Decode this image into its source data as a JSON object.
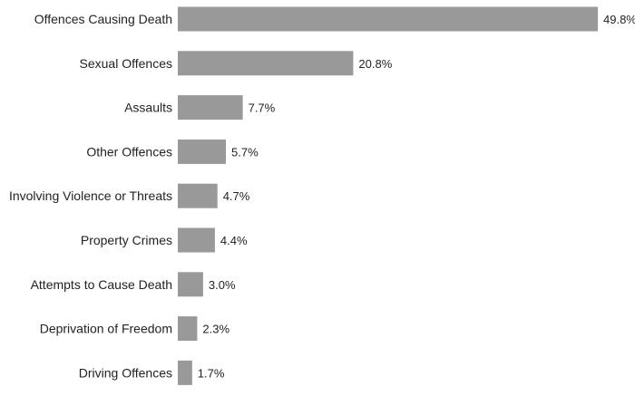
{
  "chart_data": {
    "type": "bar",
    "orientation": "horizontal",
    "title": "",
    "xlabel": "",
    "ylabel": "",
    "categories": [
      "Offences Causing Death",
      "Sexual Offences",
      "Assaults",
      "Other Offences",
      "Involving Violence or Threats",
      "Property Crimes",
      "Attempts to Cause Death",
      "Deprivation of Freedom",
      "Driving Offences"
    ],
    "values": [
      49.8,
      20.8,
      7.7,
      5.7,
      4.7,
      4.4,
      3.0,
      2.3,
      1.7
    ],
    "value_labels": [
      "49.8%",
      "20.8%",
      "7.7%",
      "5.7%",
      "4.7%",
      "4.4%",
      "3.0%",
      "2.3%",
      "1.7%"
    ],
    "unit": "%",
    "xlim": [
      0,
      49.8
    ],
    "grid": false,
    "legend": "none",
    "bar_color": "#999999"
  }
}
